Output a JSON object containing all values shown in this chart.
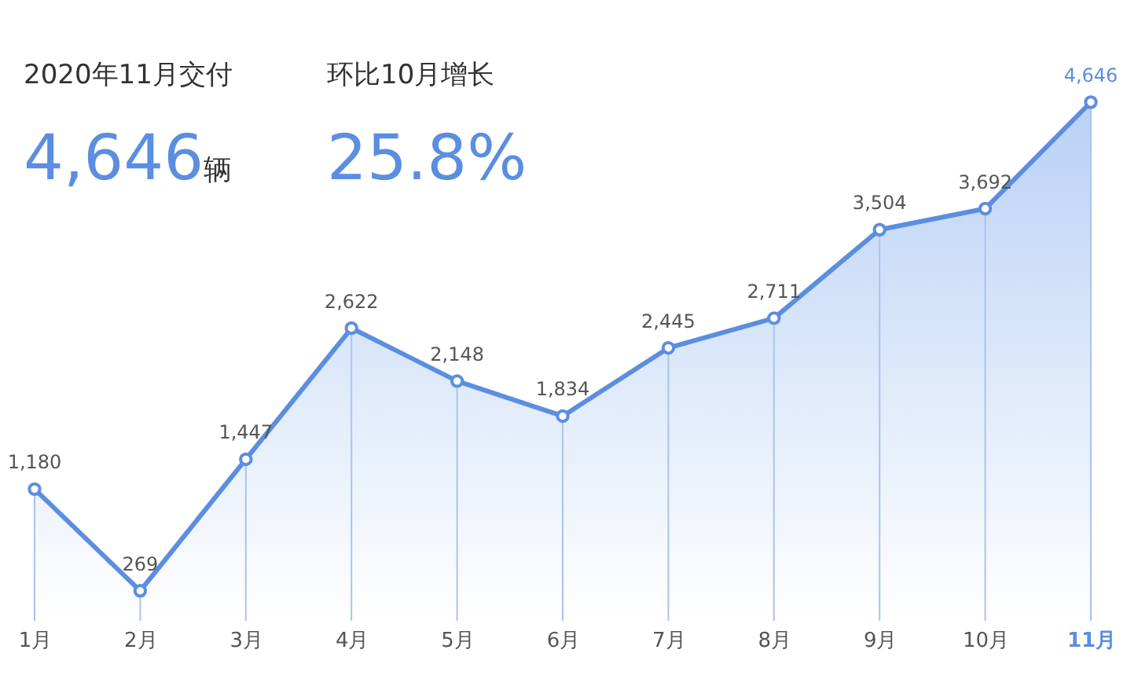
{
  "chart_data": {
    "type": "area",
    "categories": [
      "1月",
      "2月",
      "3月",
      "4月",
      "5月",
      "6月",
      "7月",
      "8月",
      "9月",
      "10月",
      "11月"
    ],
    "series": [
      {
        "color": "#5b8ee0",
        "values": [
          1180,
          269,
          1447,
          2622,
          2148,
          1834,
          2445,
          2711,
          3504,
          3692,
          4646
        ],
        "value_labels": [
          "1,180",
          "269",
          "1,447",
          "2,622",
          "2,148",
          "1,834",
          "2,445",
          "2,711",
          "3,504",
          "3,692",
          "4,646"
        ]
      }
    ],
    "marker": "circle",
    "grid": "x",
    "line_style": "solid",
    "tick_labels": "x",
    "annotations": [
      "2020年11月交付",
      "4,646辆",
      "环比10月增长",
      "25.8%"
    ]
  }
}
